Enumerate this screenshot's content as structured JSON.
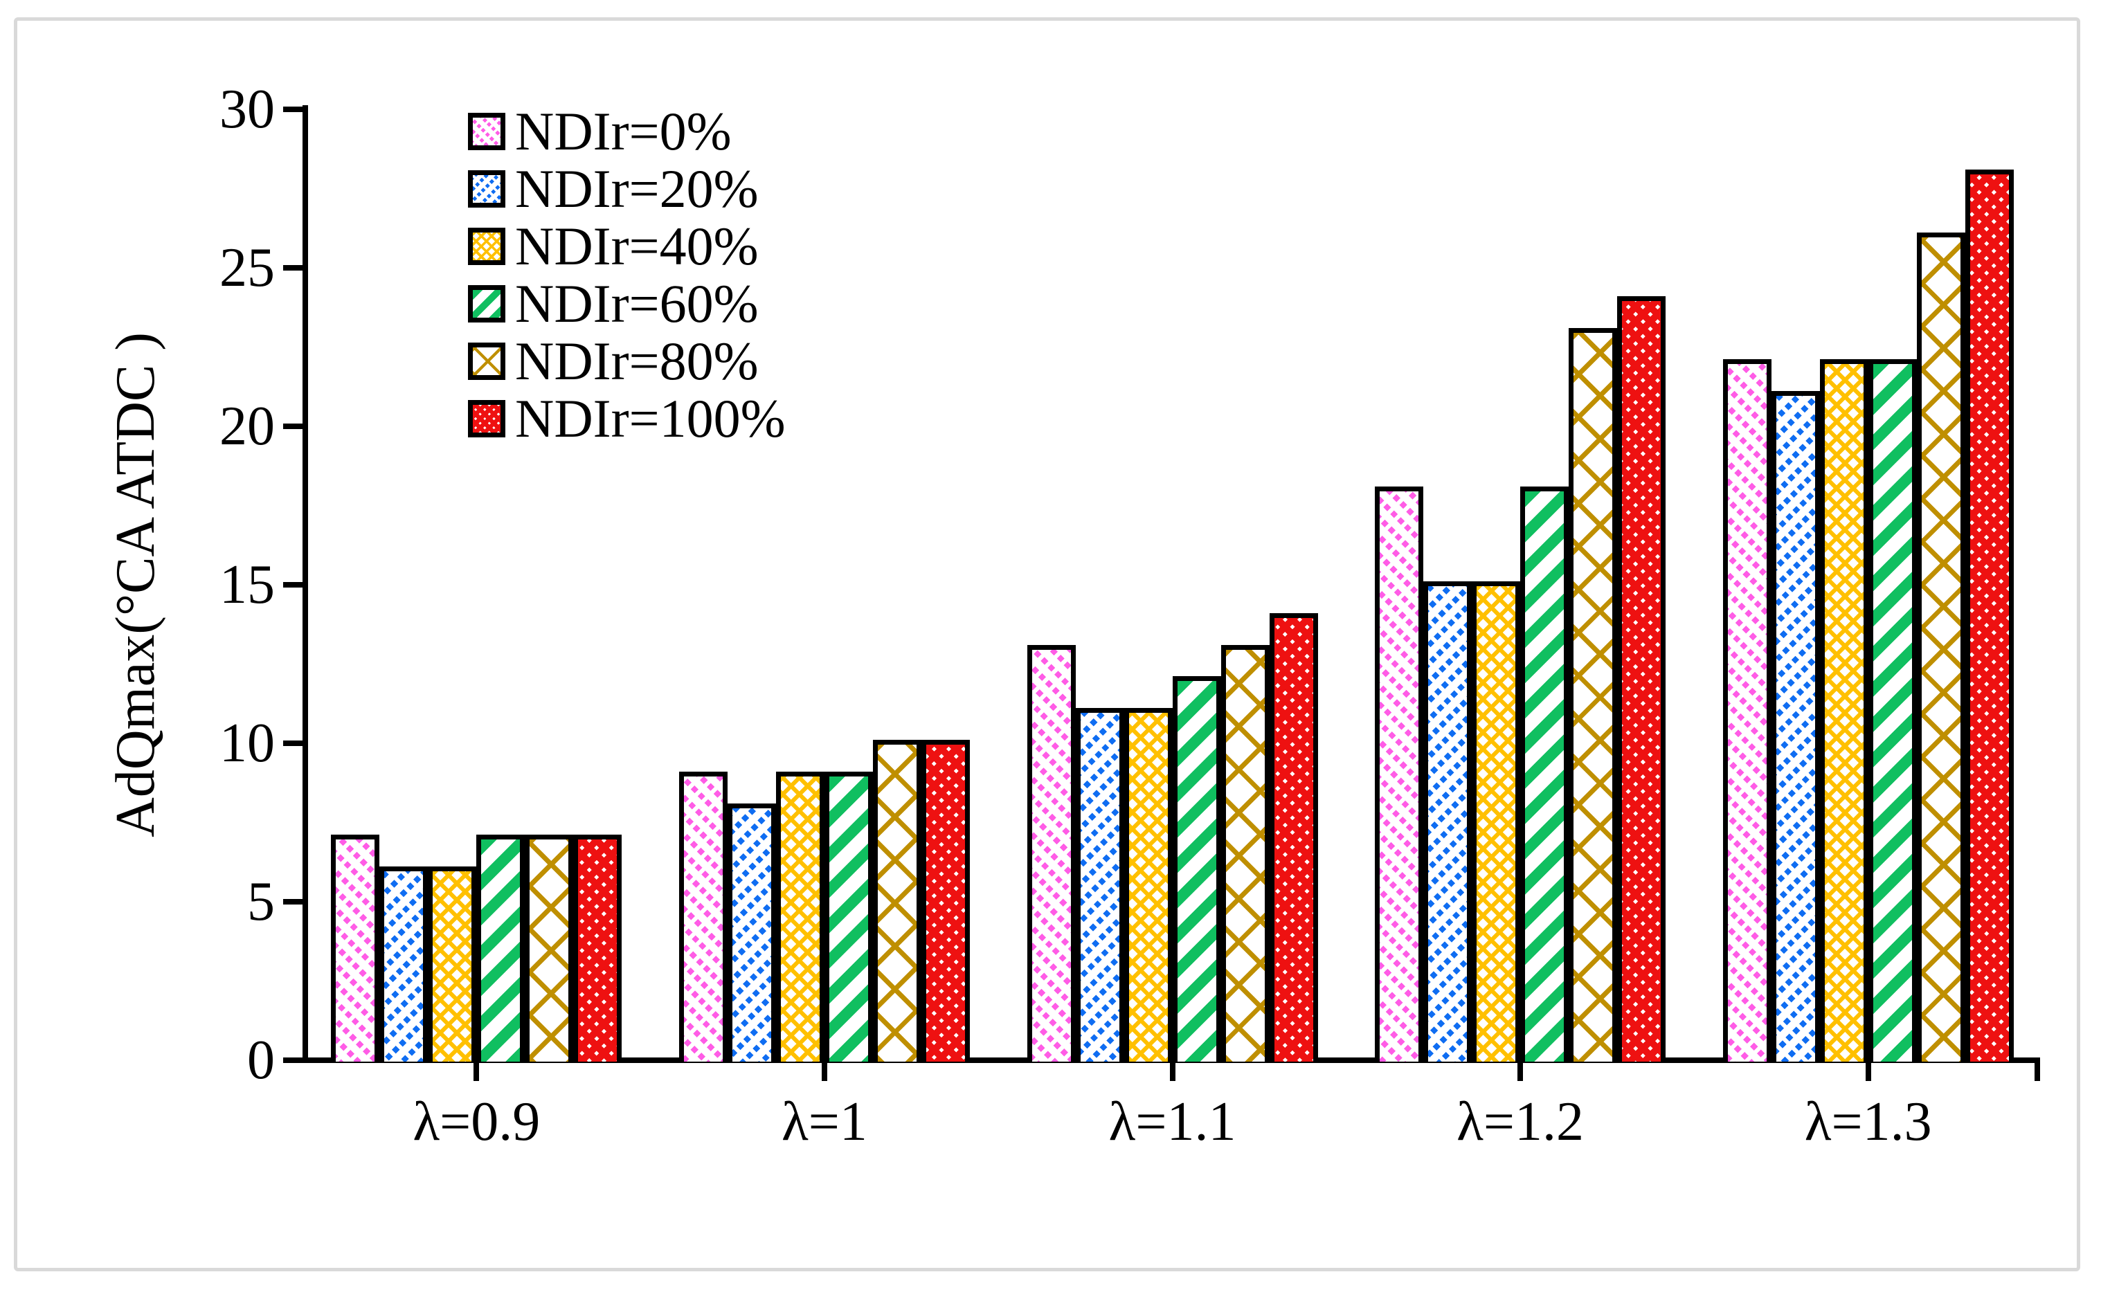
{
  "figure": {
    "background": "#ffffff",
    "frame_color": "#d9d9d9"
  },
  "chart_data": {
    "type": "bar",
    "title": "",
    "xlabel": "",
    "ylabel": "AdQmax(°CA ATDC )",
    "ylim": [
      0,
      30
    ],
    "yticks": [
      0,
      5,
      10,
      15,
      20,
      25,
      30
    ],
    "grid": false,
    "legend_position": "upper-left-inside",
    "categories": [
      "λ=0.9",
      "λ=1",
      "λ=1.1",
      "λ=1.2",
      "λ=1.3"
    ],
    "series": [
      {
        "name": "NDIr=0%",
        "color": "#ff5ce6",
        "pattern": "thin-dashed-diagonal-down",
        "values": [
          7,
          9,
          13,
          18,
          22
        ]
      },
      {
        "name": "NDIr=20%",
        "color": "#0f6df2",
        "pattern": "thin-dashed-diagonal-up",
        "values": [
          6,
          8,
          11,
          15,
          21
        ]
      },
      {
        "name": "NDIr=40%",
        "color": "#ffc000",
        "pattern": "small-diamond-checker",
        "values": [
          6,
          9,
          11,
          15,
          22
        ]
      },
      {
        "name": "NDIr=60%",
        "color": "#10bf60",
        "pattern": "thick-diagonal-up",
        "values": [
          7,
          9,
          12,
          18,
          22
        ]
      },
      {
        "name": "NDIr=80%",
        "color": "#bf8f00",
        "pattern": "large-diamond-lattice",
        "values": [
          7,
          10,
          13,
          23,
          26
        ]
      },
      {
        "name": "NDIr=100%",
        "color": "#ee1111",
        "pattern": "dense-checker",
        "values": [
          7,
          10,
          14,
          24,
          28
        ]
      }
    ]
  }
}
